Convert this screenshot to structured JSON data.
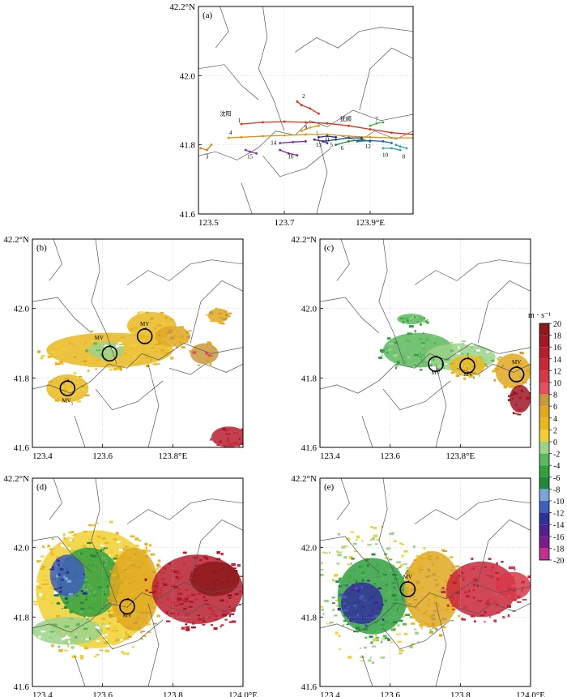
{
  "chart_data": [
    {
      "panel": "(a)",
      "type": "line",
      "x_range": [
        123.5,
        124.0
      ],
      "y_range": [
        41.6,
        42.2
      ],
      "x_ticks": [
        {
          "v": 123.5,
          "t": "123.5"
        },
        {
          "v": 123.7,
          "t": "123.7"
        },
        {
          "v": 123.9,
          "t": "123.9°E"
        }
      ],
      "y_ticks": [
        {
          "v": 41.6,
          "t": "41.6"
        },
        {
          "v": 41.8,
          "t": "41.8"
        },
        {
          "v": 42.0,
          "t": "42.0"
        },
        {
          "v": 42.2,
          "t": "42.2°N"
        }
      ],
      "city_labels": [
        {
          "text": "沈阳",
          "x": 123.55,
          "y": 41.885
        },
        {
          "text": "抚顺",
          "x": 123.83,
          "y": 41.87
        }
      ],
      "tracks": [
        {
          "id": "1",
          "color": "#e03010",
          "label_x": 123.595,
          "label_y": 41.865,
          "points": [
            [
              123.6,
              41.86
            ],
            [
              123.65,
              41.865
            ],
            [
              123.7,
              41.867
            ],
            [
              123.75,
              41.865
            ],
            [
              123.8,
              41.862
            ],
            [
              123.85,
              41.855
            ],
            [
              123.9,
              41.845
            ],
            [
              123.95,
              41.835
            ],
            [
              124.0,
              41.83
            ]
          ]
        },
        {
          "id": "2",
          "color": "#e03010",
          "label_x": 123.745,
          "label_y": 41.935,
          "points": [
            [
              123.73,
              41.925
            ],
            [
              123.74,
              41.915
            ],
            [
              123.76,
              41.905
            ],
            [
              123.78,
              41.89
            ]
          ]
        },
        {
          "id": "3",
          "color": "#e08020",
          "label_x": 123.52,
          "label_y": 41.76,
          "points": [
            [
              123.505,
              41.79
            ],
            [
              123.52,
              41.785
            ],
            [
              123.53,
              41.8
            ]
          ]
        },
        {
          "id": "4",
          "color": "#e09000",
          "label_x": 123.575,
          "label_y": 41.83,
          "points": [
            [
              123.57,
              41.82
            ],
            [
              123.6,
              41.822
            ],
            [
              123.65,
              41.825
            ],
            [
              123.7,
              41.827
            ],
            [
              123.75,
              41.83
            ],
            [
              123.8,
              41.83
            ],
            [
              123.85,
              41.825
            ],
            [
              123.9,
              41.822
            ],
            [
              123.95,
              41.82
            ],
            [
              124.0,
              41.82
            ]
          ]
        },
        {
          "id": "5",
          "color": "#1040a0",
          "label_x": 123.81,
          "label_y": 41.795,
          "points": [
            [
              123.79,
              41.81
            ],
            [
              123.82,
              41.815
            ],
            [
              123.85,
              41.82
            ],
            [
              123.88,
              41.82
            ]
          ]
        },
        {
          "id": "6",
          "color": "#208040",
          "label_x": 123.835,
          "label_y": 41.785,
          "points": [
            [
              123.82,
              41.8
            ],
            [
              123.85,
              41.81
            ],
            [
              123.88,
              41.815
            ],
            [
              123.9,
              41.81
            ]
          ]
        },
        {
          "id": "7",
          "color": "#40b040",
          "label_x": 123.915,
          "label_y": 41.87,
          "points": [
            [
              123.9,
              41.855
            ],
            [
              123.915,
              41.862
            ],
            [
              123.93,
              41.865
            ]
          ]
        },
        {
          "id": "8",
          "color": "#30a0c0",
          "label_x": 123.978,
          "label_y": 41.76,
          "points": [
            [
              123.96,
              41.8
            ],
            [
              123.97,
              41.795
            ],
            [
              123.985,
              41.79
            ]
          ]
        },
        {
          "id": "9",
          "color": "#d0a000",
          "label_x": 123.75,
          "label_y": 41.845,
          "points": [
            [
              123.74,
              41.84
            ],
            [
              123.76,
              41.85
            ],
            [
              123.78,
              41.855
            ]
          ]
        },
        {
          "id": "10",
          "color": "#30a0c0",
          "label_x": 123.935,
          "label_y": 41.765,
          "points": [
            [
              123.93,
              41.79
            ],
            [
              123.95,
              41.79
            ],
            [
              123.97,
              41.785
            ]
          ]
        },
        {
          "id": "11",
          "color": "#303090",
          "label_x": 123.8,
          "label_y": 41.81,
          "points": [
            [
              123.78,
              41.822
            ],
            [
              123.8,
              41.825
            ],
            [
              123.82,
              41.822
            ]
          ]
        },
        {
          "id": "12",
          "color": "#1060c0",
          "label_x": 123.895,
          "label_y": 41.79,
          "points": [
            [
              123.87,
              41.81
            ],
            [
              123.9,
              41.812
            ],
            [
              123.93,
              41.81
            ],
            [
              123.95,
              41.805
            ]
          ]
        },
        {
          "id": "13",
          "color": "#303090",
          "label_x": 123.78,
          "label_y": 41.795,
          "points": [
            [
              123.77,
              41.815
            ],
            [
              123.79,
              41.81
            ],
            [
              123.8,
              41.805
            ]
          ]
        },
        {
          "id": "14",
          "color": "#802090",
          "label_x": 123.675,
          "label_y": 41.8,
          "points": [
            [
              123.69,
              41.805
            ],
            [
              123.72,
              41.808
            ],
            [
              123.75,
              41.81
            ]
          ]
        },
        {
          "id": "15",
          "color": "#8030b0",
          "label_x": 123.62,
          "label_y": 41.76,
          "points": [
            [
              123.61,
              41.785
            ],
            [
              123.62,
              41.78
            ],
            [
              123.635,
              41.775
            ]
          ]
        },
        {
          "id": "16",
          "color": "#802090",
          "label_x": 123.715,
          "label_y": 41.76,
          "points": [
            [
              123.69,
              41.785
            ],
            [
              123.71,
              41.775
            ],
            [
              123.73,
              41.77
            ]
          ]
        }
      ]
    },
    {
      "panel": "(b)",
      "type": "heatmap",
      "x_range": [
        123.4,
        124.0
      ],
      "y_range": [
        41.6,
        42.2
      ],
      "x_ticks": [
        {
          "v": 123.4,
          "t": "123.4"
        },
        {
          "v": 123.6,
          "t": "123.6"
        },
        {
          "v": 123.8,
          "t": "123.8°E"
        }
      ],
      "y_ticks": [
        {
          "v": 41.6,
          "t": "41.6"
        },
        {
          "v": 41.8,
          "t": "41.8"
        },
        {
          "v": 42.0,
          "t": "42.0"
        },
        {
          "v": 42.2,
          "t": "42.2°N"
        }
      ],
      "mesocyclones": [
        {
          "label": "MV",
          "sub": "1",
          "x": 123.5,
          "y": 41.77,
          "label_dx": 0,
          "label_dy": -0.04
        },
        {
          "label": "MV",
          "sub": "",
          "x": 123.62,
          "y": 41.87,
          "label_dx": -0.03,
          "label_dy": 0.04
        },
        {
          "label": "MV",
          "sub": "",
          "x": 123.72,
          "y": 41.92,
          "label_dx": 0,
          "label_dy": 0.03
        }
      ],
      "echo_regions": [
        {
          "x": 123.62,
          "y": 41.88,
          "rx": 0.18,
          "ry": 0.05,
          "v": 4
        },
        {
          "x": 123.5,
          "y": 41.77,
          "rx": 0.06,
          "ry": 0.04,
          "v": 4
        },
        {
          "x": 123.74,
          "y": 41.95,
          "rx": 0.07,
          "ry": 0.04,
          "v": 4
        },
        {
          "x": 123.61,
          "y": 41.88,
          "rx": 0.05,
          "ry": 0.025,
          "v": -2
        },
        {
          "x": 123.8,
          "y": 41.92,
          "rx": 0.05,
          "ry": 0.03,
          "v": 6
        },
        {
          "x": 123.93,
          "y": 41.98,
          "rx": 0.03,
          "ry": 0.02,
          "v": 6
        },
        {
          "x": 123.89,
          "y": 41.87,
          "rx": 0.04,
          "ry": 0.03,
          "v": 8
        },
        {
          "x": 123.96,
          "y": 41.63,
          "rx": 0.05,
          "ry": 0.03,
          "v": 16
        }
      ]
    },
    {
      "panel": "(c)",
      "type": "heatmap",
      "x_range": [
        123.4,
        124.0
      ],
      "y_range": [
        41.6,
        42.2
      ],
      "x_ticks": [
        {
          "v": 123.4,
          "t": "123.4"
        },
        {
          "v": 123.6,
          "t": "123.6"
        },
        {
          "v": 123.8,
          "t": "123.8°E"
        }
      ],
      "y_ticks": [
        {
          "v": 41.6,
          "t": "41.6"
        },
        {
          "v": 41.8,
          "t": "41.8"
        },
        {
          "v": 42.0,
          "t": "42.0"
        },
        {
          "v": 42.2,
          "t": "42.2°N"
        }
      ],
      "mesocyclones": [
        {
          "label": "MV",
          "sub": "",
          "x": 123.73,
          "y": 41.84,
          "label_dx": 0,
          "label_dy": -0.03
        },
        {
          "label": "MV",
          "sub": "a",
          "x": 123.82,
          "y": 41.835,
          "label_dx": 0.005,
          "label_dy": -0.03
        },
        {
          "label": "MV",
          "sub": "",
          "x": 123.96,
          "y": 41.81,
          "label_dx": 0,
          "label_dy": 0.03
        }
      ],
      "echo_regions": [
        {
          "x": 123.68,
          "y": 41.88,
          "rx": 0.1,
          "ry": 0.05,
          "v": -4
        },
        {
          "x": 123.8,
          "y": 41.86,
          "rx": 0.1,
          "ry": 0.04,
          "v": -2
        },
        {
          "x": 123.66,
          "y": 41.97,
          "rx": 0.04,
          "ry": 0.015,
          "v": -4
        },
        {
          "x": 123.82,
          "y": 41.835,
          "rx": 0.05,
          "ry": 0.03,
          "v": 4
        },
        {
          "x": 123.95,
          "y": 41.82,
          "rx": 0.05,
          "ry": 0.05,
          "v": 6
        },
        {
          "x": 123.97,
          "y": 41.74,
          "rx": 0.03,
          "ry": 0.04,
          "v": 18
        }
      ]
    },
    {
      "panel": "(d)",
      "type": "heatmap",
      "x_range": [
        123.4,
        124.0
      ],
      "y_range": [
        41.6,
        42.2
      ],
      "x_ticks": [
        {
          "v": 123.4,
          "t": "123.4"
        },
        {
          "v": 123.6,
          "t": "123.6"
        },
        {
          "v": 123.8,
          "t": "123.8"
        },
        {
          "v": 124.0,
          "t": "124.0°E"
        }
      ],
      "y_ticks": [
        {
          "v": 41.6,
          "t": "41.6"
        },
        {
          "v": 41.8,
          "t": "41.8"
        },
        {
          "v": 42.0,
          "t": "42.0"
        },
        {
          "v": 42.2,
          "t": "42.2°N"
        }
      ],
      "mesocyclones": [
        {
          "label": "MV",
          "sub": "",
          "x": 123.67,
          "y": 41.83,
          "label_dx": 0,
          "label_dy": -0.03
        }
      ],
      "echo_regions": [
        {
          "x": 123.58,
          "y": 41.88,
          "rx": 0.17,
          "ry": 0.17,
          "v": 2
        },
        {
          "x": 123.56,
          "y": 41.9,
          "rx": 0.09,
          "ry": 0.1,
          "v": -6
        },
        {
          "x": 123.5,
          "y": 41.92,
          "rx": 0.05,
          "ry": 0.06,
          "v": -12
        },
        {
          "x": 123.69,
          "y": 41.88,
          "rx": 0.07,
          "ry": 0.12,
          "v": 6
        },
        {
          "x": 123.87,
          "y": 41.88,
          "rx": 0.13,
          "ry": 0.1,
          "v": 16
        },
        {
          "x": 123.92,
          "y": 41.91,
          "rx": 0.07,
          "ry": 0.05,
          "v": 20
        },
        {
          "x": 123.5,
          "y": 41.76,
          "rx": 0.1,
          "ry": 0.04,
          "v": -2
        }
      ]
    },
    {
      "panel": "(e)",
      "type": "heatmap",
      "x_range": [
        123.4,
        124.0
      ],
      "y_range": [
        41.6,
        42.2
      ],
      "x_ticks": [
        {
          "v": 123.4,
          "t": "123.4"
        },
        {
          "v": 123.6,
          "t": "123.6"
        },
        {
          "v": 123.8,
          "t": "123.8"
        },
        {
          "v": 124.0,
          "t": "124.0°E"
        }
      ],
      "y_ticks": [
        {
          "v": 41.6,
          "t": "41.6"
        },
        {
          "v": 41.8,
          "t": "41.8"
        },
        {
          "v": 42.0,
          "t": "42.0"
        },
        {
          "v": 42.2,
          "t": "42.2°N"
        }
      ],
      "mesocyclones": [
        {
          "label": "MV",
          "sub": "",
          "x": 123.65,
          "y": 41.88,
          "label_dx": 0,
          "label_dy": 0.03
        }
      ],
      "echo_regions": [
        {
          "x": 123.55,
          "y": 41.87,
          "rx": 0.16,
          "ry": 0.17,
          "v": 0
        },
        {
          "x": 123.55,
          "y": 41.86,
          "rx": 0.1,
          "ry": 0.11,
          "v": -6
        },
        {
          "x": 123.52,
          "y": 41.84,
          "rx": 0.06,
          "ry": 0.06,
          "v": -14
        },
        {
          "x": 123.72,
          "y": 41.88,
          "rx": 0.08,
          "ry": 0.11,
          "v": 6
        },
        {
          "x": 123.86,
          "y": 41.88,
          "rx": 0.1,
          "ry": 0.08,
          "v": 14
        },
        {
          "x": 123.95,
          "y": 41.89,
          "rx": 0.05,
          "ry": 0.04,
          "v": 12
        }
      ]
    }
  ],
  "colorbar": {
    "title": "m · s⁻¹",
    "stops": [
      {
        "v": 20,
        "c": "#8b1a1a"
      },
      {
        "v": 18,
        "c": "#a01828"
      },
      {
        "v": 16,
        "c": "#b81e30"
      },
      {
        "v": 14,
        "c": "#c8283a"
      },
      {
        "v": 12,
        "c": "#d63a48"
      },
      {
        "v": 10,
        "c": "#e05060"
      },
      {
        "v": 8,
        "c": "#c89a40"
      },
      {
        "v": 6,
        "c": "#e0a820"
      },
      {
        "v": 4,
        "c": "#e8b820"
      },
      {
        "v": 2,
        "c": "#f0d030"
      },
      {
        "v": 0,
        "c": "#ffffff"
      },
      {
        "v": -2,
        "c": "#9cd48c"
      },
      {
        "v": -4,
        "c": "#5cb85c"
      },
      {
        "v": -6,
        "c": "#30a040"
      },
      {
        "v": -8,
        "c": "#208838"
      },
      {
        "v": -10,
        "c": "#7ca4d8"
      },
      {
        "v": -12,
        "c": "#4060b8"
      },
      {
        "v": -14,
        "c": "#30309a"
      },
      {
        "v": -16,
        "c": "#502090"
      },
      {
        "v": -18,
        "c": "#7a1c8a"
      },
      {
        "v": -20,
        "c": "#c03090"
      }
    ],
    "labels": [
      "20",
      "18",
      "16",
      "14",
      "12",
      "10",
      "8",
      "6",
      "4",
      "2",
      "0",
      "-2",
      "-4",
      "-6",
      "-8",
      "-10",
      "-12",
      "-14",
      "-16",
      "-18",
      "-20"
    ]
  }
}
